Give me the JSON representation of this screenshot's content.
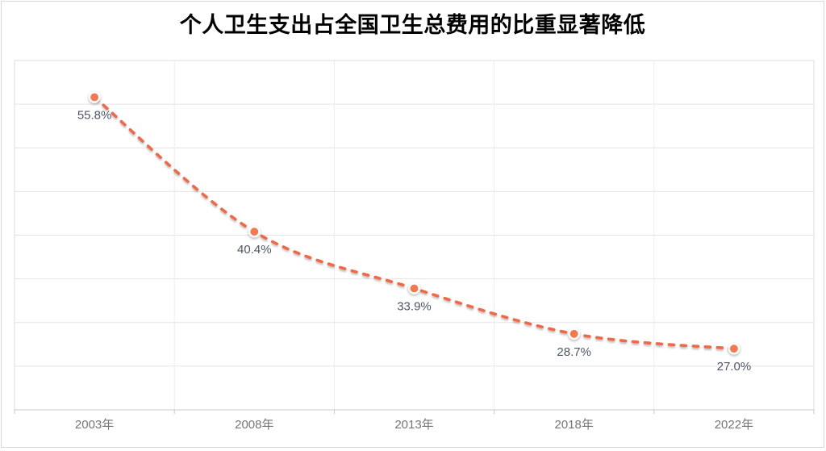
{
  "chart_data": {
    "type": "line",
    "title": "个人卫生支出占全国卫生总费用的比重显著降低",
    "categories": [
      "2003年",
      "2008年",
      "2013年",
      "2018年",
      "2022年"
    ],
    "values": [
      55.8,
      40.4,
      33.9,
      28.7,
      27.0
    ],
    "data_labels": [
      "55.8%",
      "40.4%",
      "33.9%",
      "28.7%",
      "27.0%"
    ],
    "xlabel": "",
    "ylabel": "",
    "ylim": [
      20,
      60
    ],
    "gridline_interval": 5,
    "grid": true,
    "legend_position": "none",
    "line_style": "dashed-smooth",
    "colors": {
      "line": "#F26845",
      "marker_fill": "#F4794E",
      "marker_ring": "#FFFFFF",
      "data_label": "#4D5666",
      "axis_label": "#757575",
      "gridline_h": "#E4E4E4",
      "gridline_v": "#ECECEC",
      "plot_border": "#DEDEDE",
      "axis_line": "#C9C9C9",
      "title": "#000000",
      "background": "#FFFFFF",
      "outer_border": "#D8D8D8"
    }
  }
}
